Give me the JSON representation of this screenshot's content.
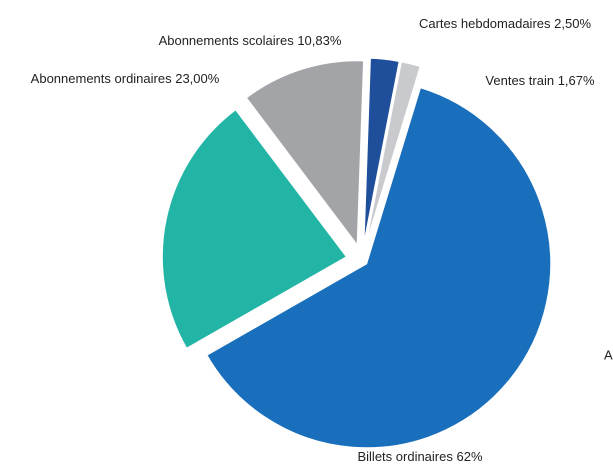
{
  "chart_data": {
    "type": "pie",
    "categories": [
      "Abonnements scolaires",
      "Cartes hebdomadaires",
      "Ventes train",
      "Billets ordinaires",
      "Abonnements ordinaires"
    ],
    "values": [
      10.83,
      2.5,
      1.67,
      62,
      23.0
    ],
    "value_labels": [
      "10,83%",
      "2,50%",
      "1,67%",
      "62%",
      "23,00%"
    ],
    "colors": [
      "#a3a4a8",
      "#1f4f9a",
      "#c9cacd",
      "#1a6fbc",
      "#22b5a6"
    ],
    "annotation": "A"
  }
}
